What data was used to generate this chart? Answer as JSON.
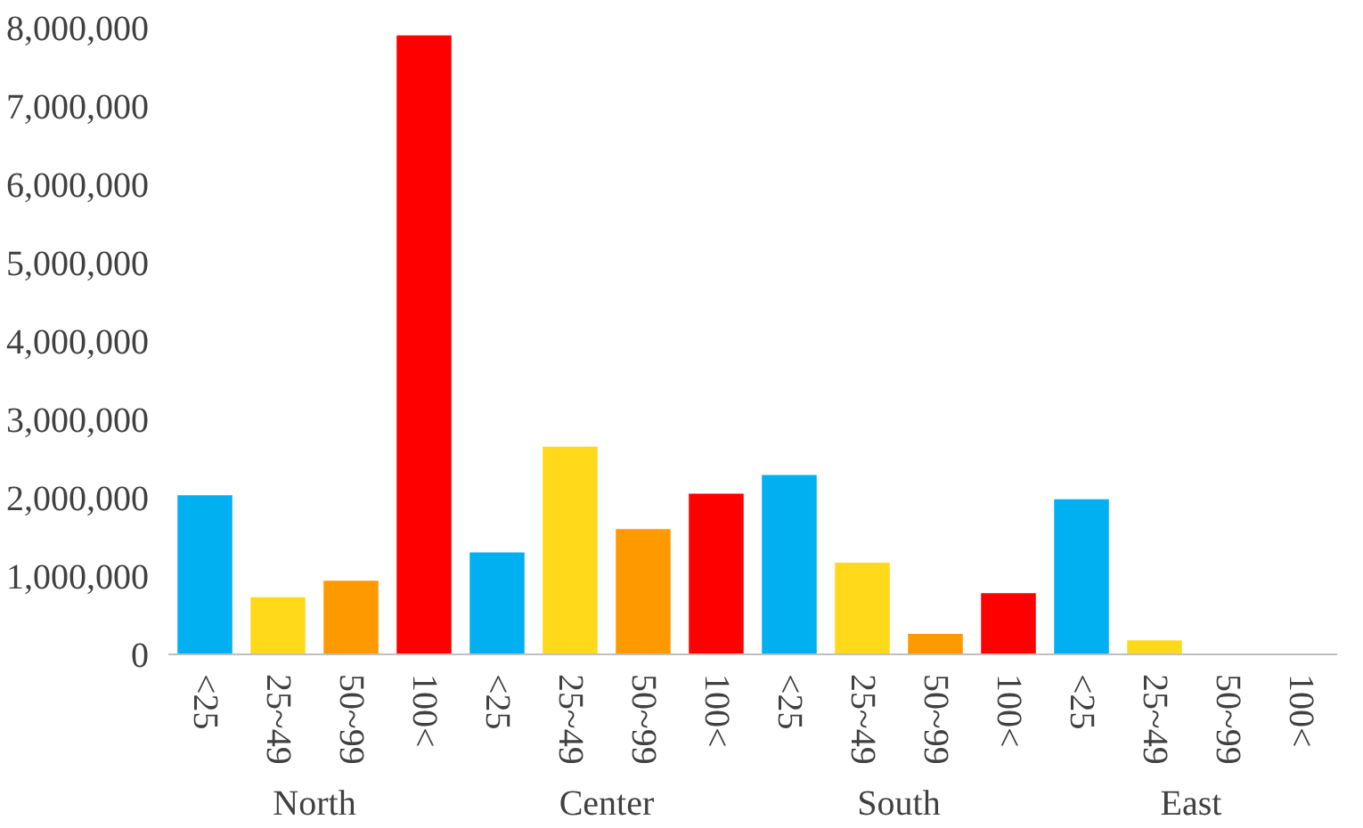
{
  "chart_data": {
    "type": "bar",
    "categories": [
      "<25",
      "25~49",
      "50~99",
      "100<",
      "<25",
      "25~49",
      "50~99",
      "100<",
      "<25",
      "25~49",
      "50~99",
      "100<",
      "<25",
      "25~49",
      "50~99",
      "100<"
    ],
    "values": [
      2030000,
      730000,
      940000,
      7900000,
      1300000,
      2650000,
      1600000,
      2050000,
      2290000,
      1170000,
      260000,
      780000,
      1980000,
      180000,
      0,
      0
    ],
    "colors": [
      "#00b0f0",
      "#ffd91a",
      "#ff9900",
      "#ff0000",
      "#00b0f0",
      "#ffd91a",
      "#ff9900",
      "#ff0000",
      "#00b0f0",
      "#ffd91a",
      "#ff9900",
      "#ff0000",
      "#00b0f0",
      "#ffd91a",
      "#ff9900",
      "#ff0000"
    ],
    "annotations": [
      "North",
      "Center",
      "South",
      "East"
    ],
    "ylim": [
      0,
      8000000
    ],
    "yticks": [
      {
        "value": 0,
        "label": "0"
      },
      {
        "value": 1000000,
        "label": "1,000,000"
      },
      {
        "value": 2000000,
        "label": "2,000,000"
      },
      {
        "value": 3000000,
        "label": "3,000,000"
      },
      {
        "value": 4000000,
        "label": "4,000,000"
      },
      {
        "value": 5000000,
        "label": "5,000,000"
      },
      {
        "value": 6000000,
        "label": "6,000,000"
      },
      {
        "value": 7000000,
        "label": "7,000,000"
      },
      {
        "value": 8000000,
        "label": "8,000,000"
      }
    ],
    "grid": false
  }
}
